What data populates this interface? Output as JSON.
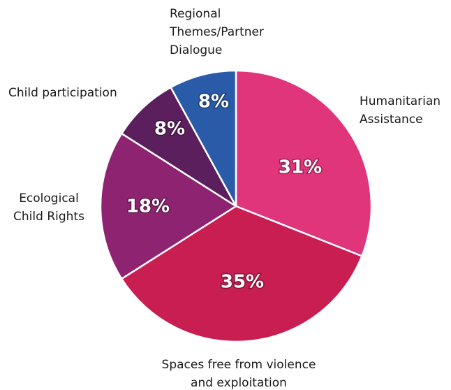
{
  "chart_data": {
    "type": "pie",
    "categories": [
      "Humanitarian\nAssistance",
      "Spaces free from violence\nand exploitation",
      "Ecological\nChild Rights",
      "Child participation",
      "Regional\nThemes/Partner\nDialogue"
    ],
    "values": [
      31,
      35,
      18,
      8,
      8
    ],
    "value_labels": [
      "31%",
      "35%",
      "18%",
      "8%",
      "8%"
    ],
    "colors": [
      "#e0357a",
      "#c81e52",
      "#8e2471",
      "#5c1f5e",
      "#2a5ba8"
    ]
  }
}
